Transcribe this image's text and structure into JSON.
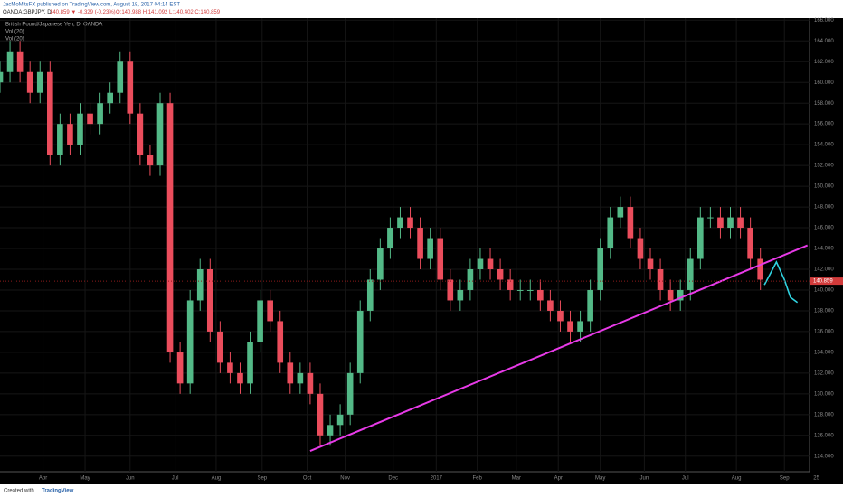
{
  "chart_data": {
    "type": "candlestick",
    "header": "JacMoMitsFX published on TradingView.com, August 18, 2017 04:14 EST",
    "symbol": "OANDA:GBPJPY, D",
    "change": "140.859 ▼ -0.329 (-0.23%)",
    "ohlc_text": "O:140.988 H:141.092 L:140.402 C:140.859",
    "legend": [
      "British Pound/Japanese Yen, D, OANDA",
      "Vol (20)",
      "Vol (20)"
    ],
    "footer": "Created with",
    "brand": "TradingView",
    "up_color": "#53b987",
    "down_color": "#eb4d5c",
    "x": [
      0,
      1,
      2,
      3,
      4,
      5,
      6,
      7,
      8,
      9,
      10,
      11,
      12,
      13,
      14,
      15,
      16,
      17,
      18,
      19,
      20,
      21,
      22,
      23,
      24,
      25,
      26,
      27,
      28,
      29,
      30,
      31,
      32,
      33,
      34,
      35,
      36,
      37,
      38,
      39,
      40,
      41,
      42,
      43,
      44,
      45,
      46,
      47,
      48,
      49,
      50,
      51,
      52,
      53,
      54,
      55,
      56,
      57,
      58,
      59,
      60,
      61,
      62,
      63,
      64,
      65,
      66,
      67,
      68,
      69,
      70,
      71,
      72,
      73,
      74,
      75,
      76
    ],
    "open": [
      160,
      161,
      163,
      161,
      159,
      161,
      153,
      156,
      154,
      157,
      156,
      158,
      159,
      162,
      157,
      153,
      152,
      158,
      134,
      131,
      139,
      142,
      136,
      133,
      132,
      131,
      135,
      139,
      137,
      133,
      131,
      132,
      130,
      126,
      127,
      128,
      132,
      138,
      141,
      144,
      146,
      147,
      146,
      143,
      145,
      141,
      139,
      140,
      142,
      143,
      142,
      141,
      140,
      140,
      140,
      139,
      138,
      137,
      136,
      137,
      140,
      144,
      147,
      148,
      145,
      143,
      142,
      140,
      139,
      140,
      143,
      147,
      147,
      146,
      147,
      146,
      143
    ],
    "high": [
      162,
      164,
      164,
      162,
      162,
      162,
      157,
      157,
      158,
      158,
      159,
      160,
      163,
      163,
      158,
      154,
      159,
      159,
      135,
      140,
      143,
      143,
      137,
      134,
      133,
      136,
      140,
      140,
      138,
      134,
      133,
      133,
      131,
      128,
      129,
      133,
      139,
      142,
      145,
      147,
      148,
      148,
      147,
      146,
      146,
      142,
      141,
      143,
      144,
      144,
      143,
      142,
      141,
      141,
      141,
      140,
      139,
      138,
      138,
      141,
      145,
      148,
      149,
      149,
      146,
      144,
      143,
      141,
      141,
      144,
      148,
      148,
      148,
      148,
      148,
      147,
      144
    ],
    "low": [
      159,
      160,
      160,
      158,
      158,
      152,
      152,
      153,
      153,
      155,
      155,
      157,
      158,
      156,
      152,
      151,
      151,
      133,
      130,
      130,
      138,
      135,
      132,
      131,
      130,
      130,
      134,
      136,
      132,
      130,
      130,
      129,
      125,
      125,
      126,
      127,
      131,
      137,
      140,
      143,
      145,
      145,
      142,
      142,
      140,
      138,
      138,
      139,
      141,
      141,
      140,
      139,
      139,
      139,
      138,
      137,
      136,
      135,
      135,
      136,
      139,
      143,
      146,
      144,
      142,
      141,
      139,
      138,
      138,
      139,
      142,
      146,
      145,
      145,
      145,
      142,
      140
    ],
    "close": [
      161,
      163,
      161,
      159,
      161,
      153,
      156,
      154,
      157,
      156,
      158,
      159,
      162,
      157,
      153,
      152,
      158,
      134,
      131,
      139,
      142,
      136,
      133,
      132,
      131,
      135,
      139,
      137,
      133,
      131,
      132,
      130,
      126,
      127,
      128,
      132,
      138,
      141,
      144,
      146,
      147,
      146,
      143,
      145,
      141,
      139,
      140,
      142,
      143,
      142,
      141,
      140,
      140,
      140,
      139,
      138,
      137,
      136,
      137,
      140,
      144,
      147,
      148,
      145,
      143,
      142,
      140,
      139,
      140,
      143,
      147,
      147,
      146,
      147,
      146,
      143,
      141
    ],
    "last_price": 140.859,
    "trendline": {
      "color": "#e83ae8",
      "x": [
        31,
        80.7
      ],
      "values": [
        124.5,
        144.3
      ]
    },
    "projection": {
      "color": "#2fd3e0",
      "x": [
        76.4,
        77.6,
        78.4,
        79,
        79.7
      ],
      "values": [
        140.5,
        142.7,
        141,
        139.3,
        138.8
      ]
    },
    "xlim": [
      0,
      81
    ],
    "xticks": [
      {
        "value": 4.3,
        "label": "Apr"
      },
      {
        "value": 8.5,
        "label": "May"
      },
      {
        "value": 13,
        "label": "Jun"
      },
      {
        "value": 17.5,
        "label": "Jul"
      },
      {
        "value": 21.6,
        "label": "Aug"
      },
      {
        "value": 26.2,
        "label": "Sep"
      },
      {
        "value": 30.7,
        "label": "Oct"
      },
      {
        "value": 34.5,
        "label": "Nov"
      },
      {
        "value": 39.3,
        "label": "Dec"
      },
      {
        "value": 43.6,
        "label": "2017"
      },
      {
        "value": 47.7,
        "label": "Feb"
      },
      {
        "value": 51.6,
        "label": "Mar"
      },
      {
        "value": 55.8,
        "label": "Apr"
      },
      {
        "value": 60,
        "label": "May"
      },
      {
        "value": 64.4,
        "label": "Jun"
      },
      {
        "value": 68.5,
        "label": "Jul"
      },
      {
        "value": 73.6,
        "label": "Aug"
      },
      {
        "value": 78.4,
        "label": "Sep"
      },
      {
        "value": 81.6,
        "label": "25"
      }
    ],
    "ylim": [
      122.5,
      166.2
    ],
    "yticks": [
      {
        "value": 124,
        "label": "124.000"
      },
      {
        "value": 126,
        "label": "126.000"
      },
      {
        "value": 128,
        "label": "128.000"
      },
      {
        "value": 130,
        "label": "130.000"
      },
      {
        "value": 132,
        "label": "132.000"
      },
      {
        "value": 134,
        "label": "134.000"
      },
      {
        "value": 136,
        "label": "136.000"
      },
      {
        "value": 138,
        "label": "138.000"
      },
      {
        "value": 140,
        "label": "140.000"
      },
      {
        "value": 142,
        "label": "142.000"
      },
      {
        "value": 144,
        "label": "144.000"
      },
      {
        "value": 146,
        "label": "146.000"
      },
      {
        "value": 148,
        "label": "148.000"
      },
      {
        "value": 150,
        "label": "150.000"
      },
      {
        "value": 152,
        "label": "152.000"
      },
      {
        "value": 154,
        "label": "154.000"
      },
      {
        "value": 156,
        "label": "156.000"
      },
      {
        "value": 158,
        "label": "158.000"
      },
      {
        "value": 160,
        "label": "160.000"
      },
      {
        "value": 162,
        "label": "162.000"
      },
      {
        "value": 164,
        "label": "164.000"
      },
      {
        "value": 166,
        "label": "166.000"
      }
    ],
    "grid": true
  }
}
